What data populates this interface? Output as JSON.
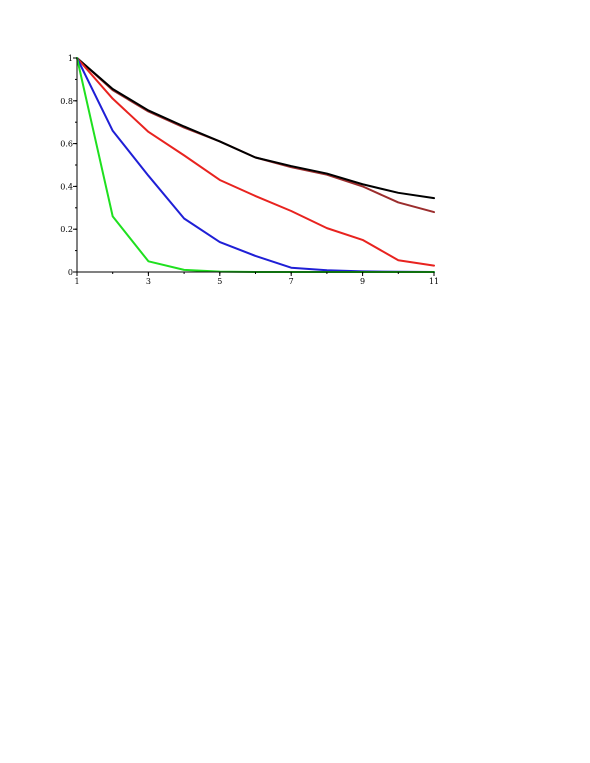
{
  "chart_data": {
    "type": "line",
    "title": "",
    "xlabel": "",
    "ylabel": "",
    "xlim": [
      1,
      11
    ],
    "ylim": [
      0,
      1
    ],
    "grid": false,
    "legend": "none",
    "x": [
      1,
      2,
      3,
      4,
      5,
      6,
      7,
      8,
      9,
      10,
      11
    ],
    "x_ticks": [
      1,
      3,
      5,
      7,
      9,
      11
    ],
    "x_tick_labels": [
      "1",
      "3",
      "5",
      "7",
      "9",
      "11"
    ],
    "y_ticks": [
      0,
      0.2,
      0.4,
      0.6,
      0.8,
      1
    ],
    "y_tick_labels": [
      "0",
      "0.2",
      "0.4",
      "0.6",
      "0.8",
      "1"
    ],
    "series": [
      {
        "color": "#9b2d2d",
        "values": [
          1,
          0.85,
          0.75,
          0.675,
          0.61,
          0.535,
          0.49,
          0.455,
          0.4,
          0.325,
          0.28
        ]
      },
      {
        "color": "#000000",
        "values": [
          1,
          0.855,
          0.755,
          0.68,
          0.61,
          0.535,
          0.495,
          0.46,
          0.41,
          0.37,
          0.345
        ]
      },
      {
        "color": "#e8231f",
        "values": [
          1,
          0.81,
          0.655,
          0.545,
          0.43,
          0.355,
          0.285,
          0.205,
          0.15,
          0.055,
          0.03
        ]
      },
      {
        "color": "#1f1fd6",
        "values": [
          1,
          0.66,
          0.45,
          0.25,
          0.14,
          0.075,
          0.02,
          0.008,
          0.003,
          0.001,
          0.0
        ]
      },
      {
        "color": "#1fe01f",
        "values": [
          1,
          0.26,
          0.05,
          0.01,
          0.002,
          0.0,
          0.0,
          0.0,
          0.0,
          0.0,
          0.0
        ]
      }
    ]
  }
}
